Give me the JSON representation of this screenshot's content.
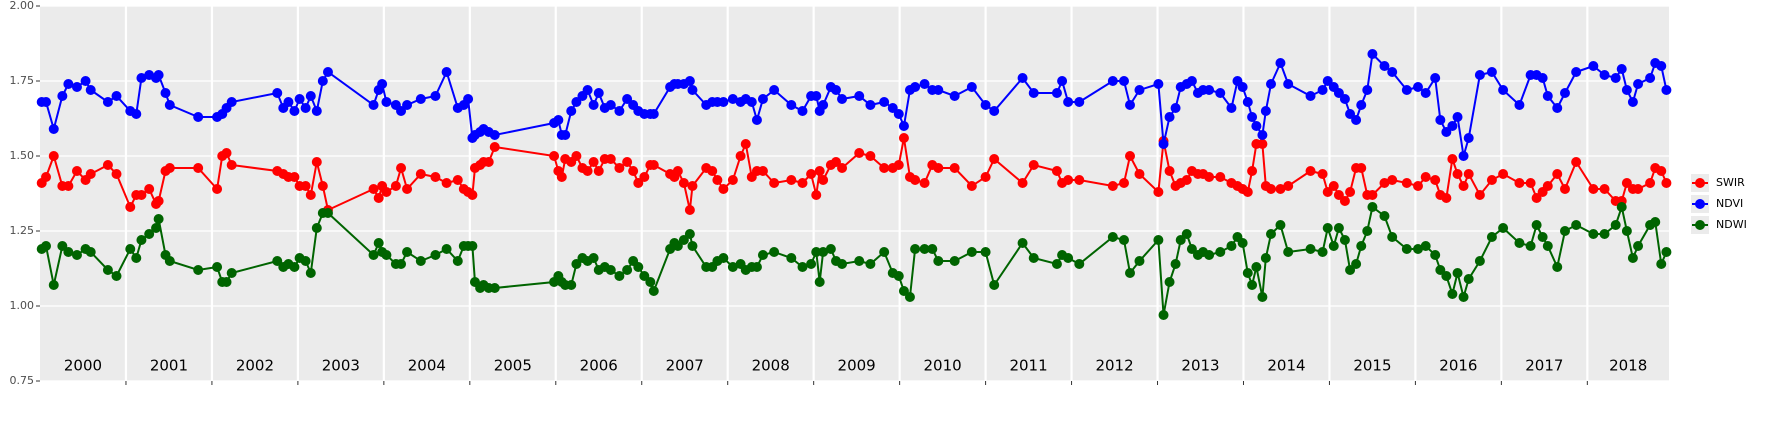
{
  "chart_data": {
    "type": "line",
    "xlim": [
      2000,
      2018.95
    ],
    "xticks": [
      2001,
      2002,
      2003,
      2004,
      2005,
      2006,
      2007,
      2008,
      2009,
      2010,
      2011,
      2012,
      2013,
      2014,
      2015,
      2016,
      2017,
      2018
    ],
    "year_bands": [
      2000,
      2001,
      2002,
      2003,
      2004,
      2005,
      2006,
      2007,
      2008,
      2009,
      2010,
      2011,
      2012,
      2013,
      2014,
      2015,
      2016,
      2017,
      2018
    ],
    "ylim": [
      0.75,
      2
    ],
    "yticks": [
      {
        "value": 0.75,
        "label": "0.75"
      },
      {
        "value": 1,
        "label": "1.00"
      },
      {
        "value": 1.25,
        "label": "1.25"
      },
      {
        "value": 1.5,
        "label": "1.50"
      },
      {
        "value": 1.75,
        "label": "1.75"
      },
      {
        "value": 2,
        "label": "2.00"
      }
    ],
    "grid": true,
    "legend": "right",
    "x": [
      2000.02,
      2000.07,
      2000.16,
      2000.26,
      2000.33,
      2000.43,
      2000.53,
      2000.59,
      2000.79,
      2000.89,
      2001.05,
      2001.12,
      2001.18,
      2001.27,
      2001.35,
      2001.38,
      2001.46,
      2001.51,
      2001.84,
      2002.06,
      2002.12,
      2002.17,
      2002.23,
      2002.76,
      2002.83,
      2002.89,
      2002.96,
      2003.02,
      2003.09,
      2003.15,
      2003.22,
      2003.29,
      2003.35,
      2003.88,
      2003.94,
      2003.98,
      2004.03,
      2004.14,
      2004.2,
      2004.27,
      2004.43,
      2004.6,
      2004.73,
      2004.86,
      2004.93,
      2004.98,
      2005.03,
      2005.06,
      2005.12,
      2005.16,
      2005.22,
      2005.29,
      2005.98,
      2006.03,
      2006.07,
      2006.11,
      2006.18,
      2006.24,
      2006.31,
      2006.37,
      2006.44,
      2006.5,
      2006.57,
      2006.64,
      2006.74,
      2006.83,
      2006.9,
      2006.96,
      2007.03,
      2007.1,
      2007.14,
      2007.33,
      2007.38,
      2007.42,
      2007.49,
      2007.56,
      2007.59,
      2007.75,
      2007.82,
      2007.88,
      2007.95,
      2008.06,
      2008.15,
      2008.21,
      2008.28,
      2008.34,
      2008.41,
      2008.54,
      2008.74,
      2008.87,
      2008.97,
      2009.03,
      2009.07,
      2009.11,
      2009.2,
      2009.26,
      2009.33,
      2009.53,
      2009.66,
      2009.82,
      2009.92,
      2009.99,
      2010.05,
      2010.12,
      2010.18,
      2010.29,
      2010.38,
      2010.45,
      2010.64,
      2010.84,
      2011.0,
      2011.1,
      2011.43,
      2011.56,
      2011.83,
      2011.89,
      2011.96,
      2012.09,
      2012.48,
      2012.61,
      2012.68,
      2012.79,
      2013.01,
      2013.07,
      2013.14,
      2013.21,
      2013.27,
      2013.34,
      2013.4,
      2013.47,
      2013.53,
      2013.6,
      2013.73,
      2013.86,
      2013.93,
      2013.99,
      2014.05,
      2014.1,
      2014.15,
      2014.22,
      2014.26,
      2014.32,
      2014.43,
      2014.52,
      2014.78,
      2014.92,
      2014.98,
      2015.05,
      2015.11,
      2015.18,
      2015.24,
      2015.31,
      2015.37,
      2015.44,
      2015.5,
      2015.64,
      2015.73,
      2015.9,
      2016.03,
      2016.12,
      2016.23,
      2016.29,
      2016.36,
      2016.43,
      2016.49,
      2016.56,
      2016.62,
      2016.75,
      2016.89,
      2017.02,
      2017.21,
      2017.34,
      2017.41,
      2017.48,
      2017.54,
      2017.65,
      2017.74,
      2017.87,
      2018.07,
      2018.2,
      2018.33,
      2018.4,
      2018.46,
      2018.53,
      2018.59,
      2018.73,
      2018.79,
      2018.86,
      2018.92
    ],
    "series": [
      {
        "name": "SWIR",
        "color": "#ff0000",
        "values": [
          1.41,
          1.43,
          1.5,
          1.4,
          1.4,
          1.45,
          1.42,
          1.44,
          1.47,
          1.44,
          1.33,
          1.37,
          1.37,
          1.39,
          1.34,
          1.35,
          1.45,
          1.46,
          1.46,
          1.39,
          1.5,
          1.51,
          1.47,
          1.45,
          1.44,
          1.43,
          1.43,
          1.4,
          1.4,
          1.37,
          1.48,
          1.4,
          1.32,
          1.39,
          1.36,
          1.4,
          1.38,
          1.4,
          1.46,
          1.39,
          1.44,
          1.43,
          1.41,
          1.42,
          1.39,
          1.38,
          1.37,
          1.46,
          1.47,
          1.48,
          1.48,
          1.53,
          1.5,
          1.45,
          1.43,
          1.49,
          1.48,
          1.5,
          1.46,
          1.45,
          1.48,
          1.45,
          1.49,
          1.49,
          1.46,
          1.48,
          1.45,
          1.41,
          1.43,
          1.47,
          1.47,
          1.44,
          1.43,
          1.45,
          1.41,
          1.32,
          1.4,
          1.46,
          1.45,
          1.42,
          1.39,
          1.42,
          1.5,
          1.54,
          1.43,
          1.45,
          1.45,
          1.41,
          1.42,
          1.41,
          1.44,
          1.37,
          1.45,
          1.42,
          1.47,
          1.48,
          1.46,
          1.51,
          1.5,
          1.46,
          1.46,
          1.47,
          1.56,
          1.43,
          1.42,
          1.41,
          1.47,
          1.46,
          1.46,
          1.4,
          1.43,
          1.49,
          1.41,
          1.47,
          1.45,
          1.41,
          1.42,
          1.42,
          1.4,
          1.41,
          1.5,
          1.44,
          1.38,
          1.55,
          1.45,
          1.4,
          1.41,
          1.42,
          1.45,
          1.44,
          1.44,
          1.43,
          1.43,
          1.41,
          1.4,
          1.39,
          1.38,
          1.45,
          1.54,
          1.54,
          1.4,
          1.39,
          1.39,
          1.4,
          1.45,
          1.44,
          1.38,
          1.4,
          1.37,
          1.35,
          1.38,
          1.46,
          1.46,
          1.37,
          1.37,
          1.41,
          1.42,
          1.41,
          1.4,
          1.43,
          1.42,
          1.37,
          1.36,
          1.49,
          1.44,
          1.4,
          1.44,
          1.37,
          1.42,
          1.44,
          1.41,
          1.41,
          1.36,
          1.38,
          1.4,
          1.44,
          1.39,
          1.48,
          1.39,
          1.39,
          1.35,
          1.35,
          1.41,
          1.39,
          1.39,
          1.41,
          1.46,
          1.45,
          1.41
        ]
      },
      {
        "name": "NDVI",
        "color": "#0000ff",
        "values": [
          1.68,
          1.68,
          1.59,
          1.7,
          1.74,
          1.73,
          1.75,
          1.72,
          1.68,
          1.7,
          1.65,
          1.64,
          1.76,
          1.77,
          1.76,
          1.77,
          1.71,
          1.67,
          1.63,
          1.63,
          1.64,
          1.66,
          1.68,
          1.71,
          1.66,
          1.68,
          1.65,
          1.69,
          1.66,
          1.7,
          1.65,
          1.75,
          1.78,
          1.67,
          1.72,
          1.74,
          1.68,
          1.67,
          1.65,
          1.67,
          1.69,
          1.7,
          1.78,
          1.66,
          1.67,
          1.69,
          1.56,
          1.57,
          1.58,
          1.59,
          1.58,
          1.57,
          1.61,
          1.62,
          1.57,
          1.57,
          1.65,
          1.68,
          1.7,
          1.72,
          1.67,
          1.71,
          1.66,
          1.67,
          1.65,
          1.69,
          1.67,
          1.65,
          1.64,
          1.64,
          1.64,
          1.73,
          1.74,
          1.74,
          1.74,
          1.75,
          1.72,
          1.67,
          1.68,
          1.68,
          1.68,
          1.69,
          1.68,
          1.69,
          1.68,
          1.62,
          1.69,
          1.72,
          1.67,
          1.65,
          1.7,
          1.7,
          1.65,
          1.67,
          1.73,
          1.72,
          1.69,
          1.7,
          1.67,
          1.68,
          1.66,
          1.64,
          1.6,
          1.72,
          1.73,
          1.74,
          1.72,
          1.72,
          1.7,
          1.73,
          1.67,
          1.65,
          1.76,
          1.71,
          1.71,
          1.75,
          1.68,
          1.68,
          1.75,
          1.75,
          1.67,
          1.72,
          1.74,
          1.54,
          1.63,
          1.66,
          1.73,
          1.74,
          1.75,
          1.71,
          1.72,
          1.72,
          1.71,
          1.66,
          1.75,
          1.73,
          1.68,
          1.63,
          1.6,
          1.57,
          1.65,
          1.74,
          1.81,
          1.74,
          1.7,
          1.72,
          1.75,
          1.73,
          1.71,
          1.69,
          1.64,
          1.62,
          1.67,
          1.72,
          1.84,
          1.8,
          1.78,
          1.72,
          1.73,
          1.71,
          1.76,
          1.62,
          1.58,
          1.6,
          1.63,
          1.5,
          1.56,
          1.77,
          1.78,
          1.72,
          1.67,
          1.77,
          1.77,
          1.76,
          1.7,
          1.66,
          1.71,
          1.78,
          1.8,
          1.77,
          1.76,
          1.79,
          1.72,
          1.68,
          1.74,
          1.76,
          1.81,
          1.8,
          1.72
        ]
      },
      {
        "name": "NDWI",
        "color": "#006400",
        "values": [
          1.19,
          1.2,
          1.07,
          1.2,
          1.18,
          1.17,
          1.19,
          1.18,
          1.12,
          1.1,
          1.19,
          1.16,
          1.22,
          1.24,
          1.26,
          1.29,
          1.17,
          1.15,
          1.12,
          1.13,
          1.08,
          1.08,
          1.11,
          1.15,
          1.13,
          1.14,
          1.13,
          1.16,
          1.15,
          1.11,
          1.26,
          1.31,
          1.31,
          1.17,
          1.21,
          1.18,
          1.17,
          1.14,
          1.14,
          1.18,
          1.15,
          1.17,
          1.19,
          1.15,
          1.2,
          1.2,
          1.2,
          1.08,
          1.06,
          1.07,
          1.06,
          1.06,
          1.08,
          1.1,
          1.08,
          1.07,
          1.07,
          1.14,
          1.16,
          1.15,
          1.16,
          1.12,
          1.13,
          1.12,
          1.1,
          1.12,
          1.15,
          1.13,
          1.1,
          1.08,
          1.05,
          1.19,
          1.21,
          1.2,
          1.22,
          1.24,
          1.2,
          1.13,
          1.13,
          1.15,
          1.16,
          1.13,
          1.14,
          1.12,
          1.13,
          1.13,
          1.17,
          1.18,
          1.16,
          1.13,
          1.14,
          1.18,
          1.08,
          1.18,
          1.19,
          1.15,
          1.14,
          1.15,
          1.14,
          1.18,
          1.11,
          1.1,
          1.05,
          1.03,
          1.19,
          1.19,
          1.19,
          1.15,
          1.15,
          1.18,
          1.18,
          1.07,
          1.21,
          1.16,
          1.14,
          1.17,
          1.16,
          1.14,
          1.23,
          1.22,
          1.11,
          1.15,
          1.22,
          0.97,
          1.08,
          1.14,
          1.22,
          1.24,
          1.19,
          1.17,
          1.18,
          1.17,
          1.18,
          1.2,
          1.23,
          1.21,
          1.11,
          1.07,
          1.13,
          1.03,
          1.16,
          1.24,
          1.27,
          1.18,
          1.19,
          1.18,
          1.26,
          1.2,
          1.26,
          1.22,
          1.12,
          1.14,
          1.2,
          1.25,
          1.33,
          1.3,
          1.23,
          1.19,
          1.19,
          1.2,
          1.17,
          1.12,
          1.1,
          1.04,
          1.11,
          1.03,
          1.09,
          1.15,
          1.23,
          1.26,
          1.21,
          1.2,
          1.27,
          1.23,
          1.2,
          1.13,
          1.25,
          1.27,
          1.24,
          1.24,
          1.27,
          1.33,
          1.25,
          1.16,
          1.2,
          1.27,
          1.28,
          1.14,
          1.18
        ]
      }
    ]
  }
}
